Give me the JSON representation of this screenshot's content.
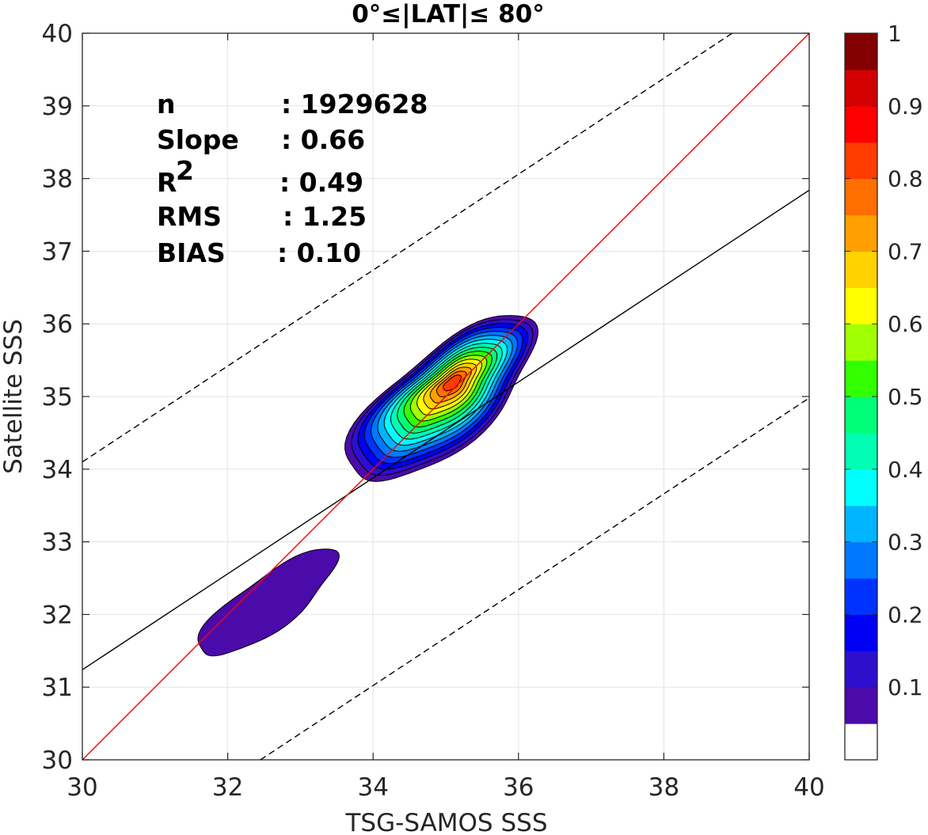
{
  "chart_data": {
    "type": "contour",
    "title": "0°≤|LAT|≤ 80°",
    "xlabel": "TSG-SAMOS SSS",
    "ylabel": "Satellite SSS",
    "xlim": [
      30,
      40
    ],
    "ylim": [
      30,
      40
    ],
    "xticks": [
      "30",
      "32",
      "34",
      "36",
      "38",
      "40"
    ],
    "yticks": [
      "30",
      "31",
      "32",
      "33",
      "34",
      "35",
      "36",
      "37",
      "38",
      "39",
      "40"
    ],
    "grid": true,
    "stats": [
      {
        "key": "n",
        "value": ": 1929628"
      },
      {
        "key": "Slope",
        "value": ": 0.66"
      },
      {
        "key": "R",
        "sup": "2",
        "value": ": 0.49"
      },
      {
        "key": "RMS",
        "value": ": 1.25"
      },
      {
        "key": "BIAS",
        "value": ": 0.10"
      }
    ],
    "lines": {
      "one_to_one": {
        "x": [
          30,
          40
        ],
        "y": [
          30,
          40
        ],
        "color": "#ff0000"
      },
      "regression": {
        "x": [
          30,
          40
        ],
        "y": [
          31.24,
          37.84
        ],
        "color": "#000000"
      },
      "upper_bound": {
        "x": [
          30,
          38.94
        ],
        "y": [
          34.1,
          40
        ],
        "color": "#000000",
        "style": "dashed"
      },
      "lower_bound": {
        "x": [
          32.45,
          40
        ],
        "y": [
          30,
          34.98
        ],
        "color": "#000000",
        "style": "dashed"
      }
    },
    "density_peak": {
      "x": 35.1,
      "y": 35.2,
      "value": 1.0
    },
    "colorbar": {
      "ticks": [
        "0.1",
        "0.2",
        "0.3",
        "0.4",
        "0.5",
        "0.6",
        "0.7",
        "0.8",
        "0.9",
        "1"
      ],
      "tick_values": [
        0.1,
        0.2,
        0.3,
        0.4,
        0.5,
        0.6,
        0.7,
        0.8,
        0.9,
        1.0
      ],
      "colors": [
        "#ffffff",
        "#4b0aaa",
        "#2d0fcd",
        "#0000f5",
        "#0032ff",
        "#0078ff",
        "#00b4ff",
        "#00ffff",
        "#00ffb4",
        "#00ff78",
        "#32ff00",
        "#a0ff00",
        "#ffff00",
        "#ffd200",
        "#ffa000",
        "#ff6e00",
        "#ff3c00",
        "#ff0000",
        "#d20000",
        "#820000"
      ]
    }
  }
}
